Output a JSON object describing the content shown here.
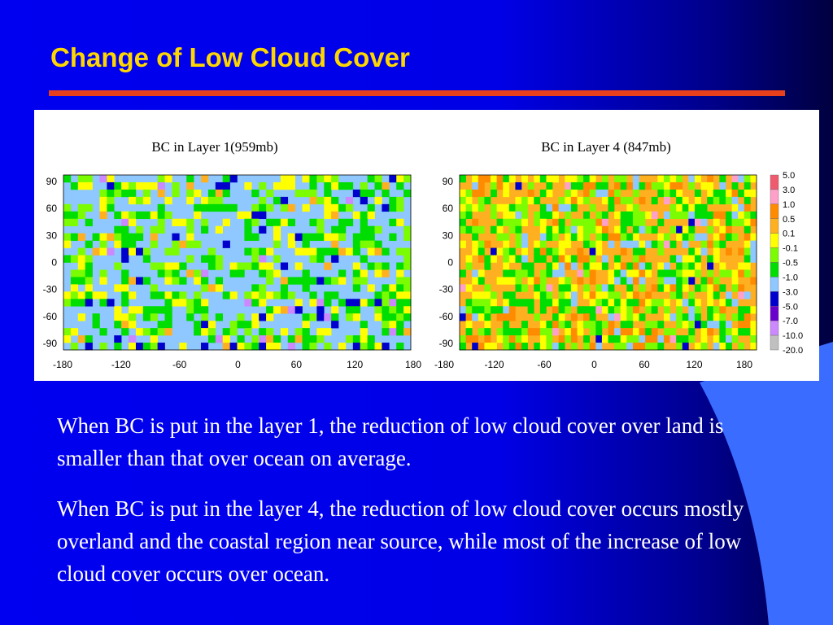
{
  "title": "Change of Low Cloud Cover",
  "figure": {
    "left_title": "BC in Layer 1(959mb)",
    "right_title": "BC in Layer 4 (847mb)",
    "yticks": [
      "90",
      "60",
      "30",
      "0",
      "-30",
      "-60",
      "-90"
    ],
    "xticks": [
      "-180",
      "-120",
      "-60",
      "0",
      "60",
      "120",
      "180"
    ],
    "colorbar": {
      "labels": [
        "5.0",
        "3.0",
        "1.0",
        "0.5",
        "0.1",
        "-0.1",
        "-0.5",
        "-1.0",
        "-3.0",
        "-5.0",
        "-7.0",
        "-10.0",
        "-20.0"
      ],
      "colors": [
        "#f05a6e",
        "#ffa0c8",
        "#ff8c00",
        "#ffb020",
        "#ffff00",
        "#7cfc00",
        "#00dd00",
        "#8ec8ff",
        "#0000cc",
        "#6a00cc",
        "#cc88ff",
        "#c0c0c0"
      ]
    }
  },
  "paragraphs": [
    "When BC is put in the layer 1, the reduction of low cloud cover over land is smaller than that over ocean on average.",
    "When BC is put in the layer 4, the reduction of low cloud cover occurs mostly overland and the coastal region near source, while most of the increase of low cloud cover occurs over ocean."
  ]
}
